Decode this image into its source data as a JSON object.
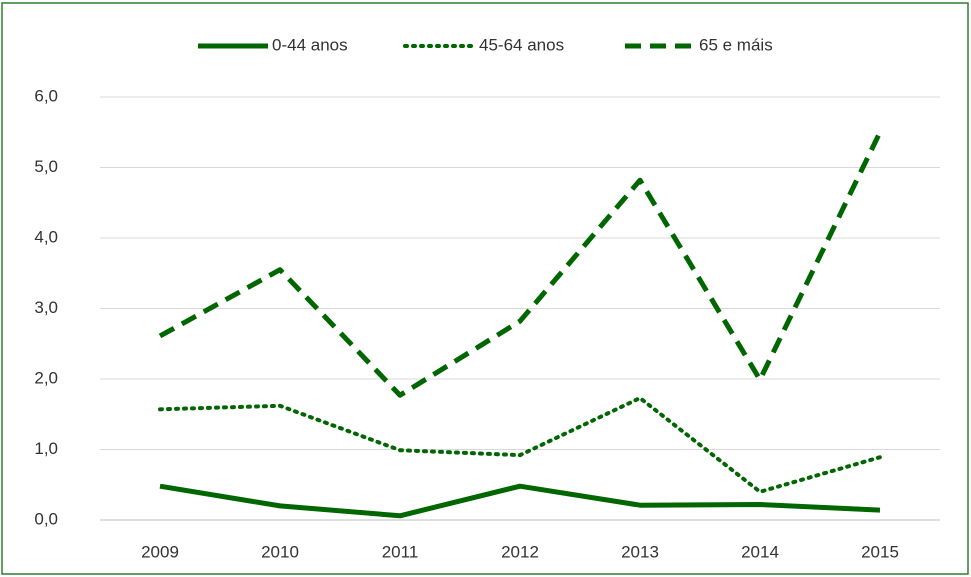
{
  "chart_data": {
    "type": "line",
    "categories": [
      "2009",
      "2010",
      "2011",
      "2012",
      "2013",
      "2014",
      "2015"
    ],
    "series": [
      {
        "name": "0-44 anos",
        "color": "#006600",
        "style": "solid",
        "values": [
          0.48,
          0.2,
          0.06,
          0.48,
          0.21,
          0.22,
          0.14
        ]
      },
      {
        "name": "45-64 anos",
        "color": "#006600",
        "style": "dotted",
        "values": [
          1.57,
          1.62,
          0.99,
          0.92,
          1.73,
          0.4,
          0.89
        ]
      },
      {
        "name": "65 e máis",
        "color": "#006600",
        "style": "dashed",
        "values": [
          2.61,
          3.55,
          1.77,
          2.82,
          4.82,
          1.99,
          5.5
        ]
      }
    ],
    "ylim": [
      0,
      6
    ],
    "yticks": [
      {
        "value": 0,
        "label": "0,0"
      },
      {
        "value": 1,
        "label": "1,0"
      },
      {
        "value": 2,
        "label": "2,0"
      },
      {
        "value": 3,
        "label": "3,0"
      },
      {
        "value": 4,
        "label": "4,0"
      },
      {
        "value": 5,
        "label": "5,0"
      },
      {
        "value": 6,
        "label": "6,0"
      }
    ],
    "grid": true,
    "legend": "top"
  }
}
